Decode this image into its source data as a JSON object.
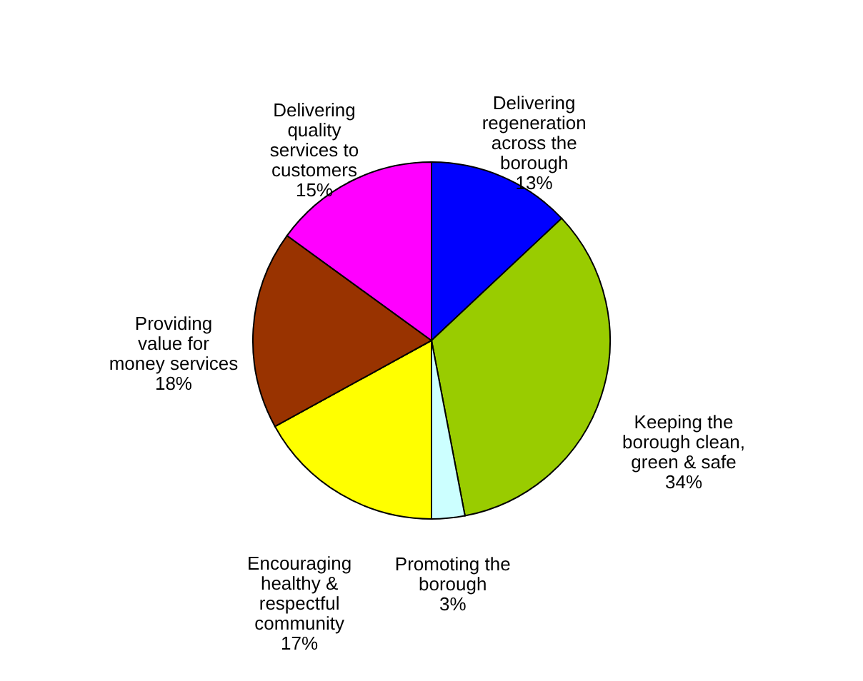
{
  "chart_data": {
    "type": "pie",
    "categories": [
      "Delivering regeneration across the borough",
      "Keeping the borough clean, green & safe",
      "Promoting the borough",
      "Encouraging healthy & respectful community",
      "Providing value for money services",
      "Delivering quality services to customers"
    ],
    "values": [
      13,
      34,
      3,
      17,
      18,
      15
    ],
    "value_labels": [
      "13%",
      "34%",
      "3%",
      "17%",
      "18%",
      "15%"
    ],
    "colors": [
      "#0000ff",
      "#99cc00",
      "#ccffff",
      "#ffff00",
      "#993300",
      "#ff00ff"
    ],
    "legend": false
  }
}
